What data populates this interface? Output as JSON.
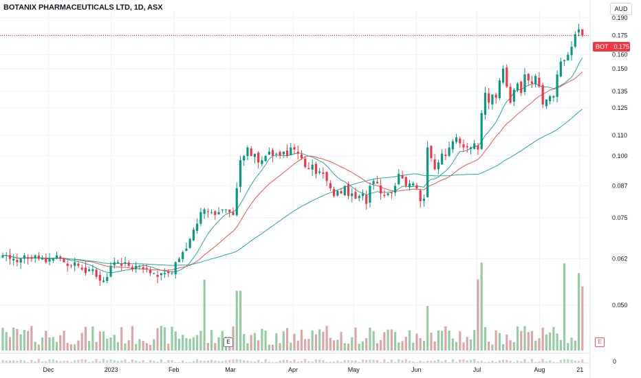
{
  "header": {
    "title": "BOTANIX PHARMACEUTICALS LTD, 1D, ASX",
    "currency": "AUD"
  },
  "price_tag": {
    "symbol": "BOT",
    "price": "0.175"
  },
  "events": {
    "earnings_label": "E",
    "earnings_label_right": "E"
  },
  "volume_axis_label": "0",
  "colors": {
    "up": "#26a69a",
    "down": "#ef5350",
    "up_body": "#089981",
    "down_body": "#f23645",
    "ma_fast": "#26a69a",
    "ma_mid": "#ef5350",
    "ma_slow": "#22ab94",
    "vol_up": "#8bc79a",
    "vol_down": "#d99ba0",
    "grid": "#f0f3fa",
    "last_price_line": "#f23645"
  },
  "chart_data": {
    "type": "candlestick",
    "symbol": "BOT",
    "interval": "1D",
    "exchange": "ASX",
    "currency": "AUD",
    "y_scale": "log",
    "ylim": [
      0.041,
      0.193
    ],
    "price_ticks": [
      "0.190",
      "0.175",
      "0.160",
      "0.150",
      "0.135",
      "0.125",
      "0.110",
      "0.100",
      "0.087",
      "0.075",
      "0.062",
      "0.050"
    ],
    "price_tick_values": [
      0.19,
      0.175,
      0.16,
      0.15,
      0.135,
      0.125,
      0.11,
      0.1,
      0.087,
      0.075,
      0.062,
      0.05
    ],
    "x_labels": [
      {
        "label": "Dec",
        "date": "2022-12-01"
      },
      {
        "label": "2023",
        "date": "2023-01-01"
      },
      {
        "label": "Feb",
        "date": "2023-02-01"
      },
      {
        "label": "Mar",
        "date": "2023-03-01"
      },
      {
        "label": "Apr",
        "date": "2023-04-01"
      },
      {
        "label": "May",
        "date": "2023-05-01"
      },
      {
        "label": "Jun",
        "date": "2023-06-01"
      },
      {
        "label": "Jul",
        "date": "2023-07-01"
      },
      {
        "label": "Aug",
        "date": "2023-08-01"
      },
      {
        "label": "21",
        "date": "2023-08-21"
      }
    ],
    "x_range": [
      "2022-11-07",
      "2023-08-26"
    ],
    "last_price": 0.175,
    "grid": true,
    "moving_averages": [
      "fast",
      "medium",
      "slow"
    ],
    "earnings_markers": [
      "2023-02-28",
      "2023-08-21"
    ],
    "series": {
      "close": [
        0.063,
        0.063,
        0.062,
        0.062,
        0.061,
        0.062,
        0.063,
        0.062,
        0.062,
        0.063,
        0.062,
        0.062,
        0.061,
        0.062,
        0.062,
        0.063,
        0.062,
        0.061,
        0.06,
        0.06,
        0.061,
        0.06,
        0.059,
        0.058,
        0.059,
        0.059,
        0.057,
        0.056,
        0.056,
        0.057,
        0.06,
        0.061,
        0.061,
        0.06,
        0.061,
        0.06,
        0.059,
        0.06,
        0.06,
        0.059,
        0.059,
        0.058,
        0.058,
        0.057,
        0.058,
        0.058,
        0.058,
        0.058,
        0.061,
        0.062,
        0.064,
        0.065,
        0.068,
        0.071,
        0.073,
        0.077,
        0.078,
        0.077,
        0.077,
        0.076,
        0.077,
        0.078,
        0.078,
        0.077,
        0.076,
        0.086,
        0.098,
        0.1,
        0.104,
        0.1,
        0.101,
        0.097,
        0.098,
        0.1,
        0.102,
        0.1,
        0.101,
        0.1,
        0.102,
        0.1,
        0.104,
        0.103,
        0.101,
        0.099,
        0.095,
        0.094,
        0.096,
        0.092,
        0.093,
        0.092,
        0.089,
        0.086,
        0.083,
        0.085,
        0.084,
        0.087,
        0.083,
        0.084,
        0.082,
        0.083,
        0.084,
        0.08,
        0.087,
        0.089,
        0.088,
        0.084,
        0.083,
        0.084,
        0.084,
        0.087,
        0.092,
        0.09,
        0.087,
        0.088,
        0.088,
        0.086,
        0.081,
        0.082,
        0.104,
        0.099,
        0.094,
        0.097,
        0.101,
        0.1,
        0.104,
        0.107,
        0.109,
        0.106,
        0.104,
        0.104,
        0.104,
        0.106,
        0.103,
        0.122,
        0.134,
        0.128,
        0.133,
        0.131,
        0.142,
        0.15,
        0.138,
        0.128,
        0.136,
        0.14,
        0.134,
        0.146,
        0.142,
        0.14,
        0.145,
        0.138,
        0.127,
        0.13,
        0.132,
        0.132,
        0.146,
        0.155,
        0.156,
        0.16,
        0.166,
        0.176,
        0.18,
        0.175
      ],
      "volume_scale": "relative",
      "volume_max": 1
    }
  }
}
